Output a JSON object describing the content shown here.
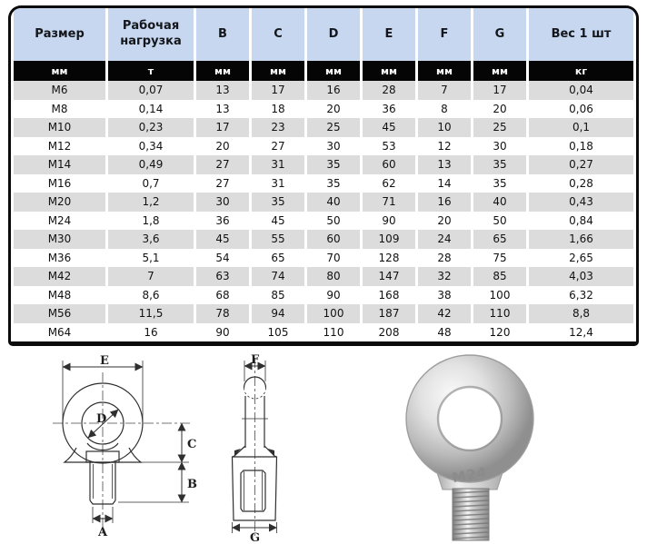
{
  "table": {
    "columns": [
      {
        "label": "Размер",
        "unit": "мм"
      },
      {
        "label": "Рабочая нагрузка",
        "unit": "т"
      },
      {
        "label": "B",
        "unit": "мм"
      },
      {
        "label": "C",
        "unit": "мм"
      },
      {
        "label": "D",
        "unit": "мм"
      },
      {
        "label": "E",
        "unit": "мм"
      },
      {
        "label": "F",
        "unit": "мм"
      },
      {
        "label": "G",
        "unit": "мм"
      },
      {
        "label": "Вес 1 шт",
        "unit": "кг"
      }
    ],
    "rows": [
      [
        "M6",
        "0,07",
        "13",
        "17",
        "16",
        "28",
        "7",
        "17",
        "0,04"
      ],
      [
        "M8",
        "0,14",
        "13",
        "18",
        "20",
        "36",
        "8",
        "20",
        "0,06"
      ],
      [
        "M10",
        "0,23",
        "17",
        "23",
        "25",
        "45",
        "10",
        "25",
        "0,1"
      ],
      [
        "M12",
        "0,34",
        "20",
        "27",
        "30",
        "53",
        "12",
        "30",
        "0,18"
      ],
      [
        "M14",
        "0,49",
        "27",
        "31",
        "35",
        "60",
        "13",
        "35",
        "0,27"
      ],
      [
        "M16",
        "0,7",
        "27",
        "31",
        "35",
        "62",
        "14",
        "35",
        "0,28"
      ],
      [
        "M20",
        "1,2",
        "30",
        "35",
        "40",
        "71",
        "16",
        "40",
        "0,43"
      ],
      [
        "M24",
        "1,8",
        "36",
        "45",
        "50",
        "90",
        "20",
        "50",
        "0,84"
      ],
      [
        "M30",
        "3,6",
        "45",
        "55",
        "60",
        "109",
        "24",
        "65",
        "1,66"
      ],
      [
        "M36",
        "5,1",
        "54",
        "65",
        "70",
        "128",
        "28",
        "75",
        "2,65"
      ],
      [
        "M42",
        "7",
        "63",
        "74",
        "80",
        "147",
        "32",
        "85",
        "4,03"
      ],
      [
        "M48",
        "8,6",
        "68",
        "85",
        "90",
        "168",
        "38",
        "100",
        "6,32"
      ],
      [
        "M56",
        "11,5",
        "78",
        "94",
        "100",
        "187",
        "42",
        "110",
        "8,8"
      ],
      [
        "M64",
        "16",
        "90",
        "105",
        "110",
        "208",
        "48",
        "120",
        "12,4"
      ]
    ],
    "colors": {
      "header_bg": "#c6d7ef",
      "header_text": "#14161c",
      "unit_bg": "#050505",
      "unit_text": "#ffffff",
      "row_alt_bg": "#dcdcdc",
      "row_bg": "#ffffff"
    }
  },
  "figures": {
    "front_view": {
      "labels": {
        "width_top": "E",
        "hole_diameter": "D",
        "body_height": "C",
        "thread_length": "B",
        "thread_diameter": "A"
      }
    },
    "side_view": {
      "labels": {
        "ring_thickness": "F",
        "base_width": "G"
      }
    },
    "photo": {
      "marking": "M24"
    }
  }
}
